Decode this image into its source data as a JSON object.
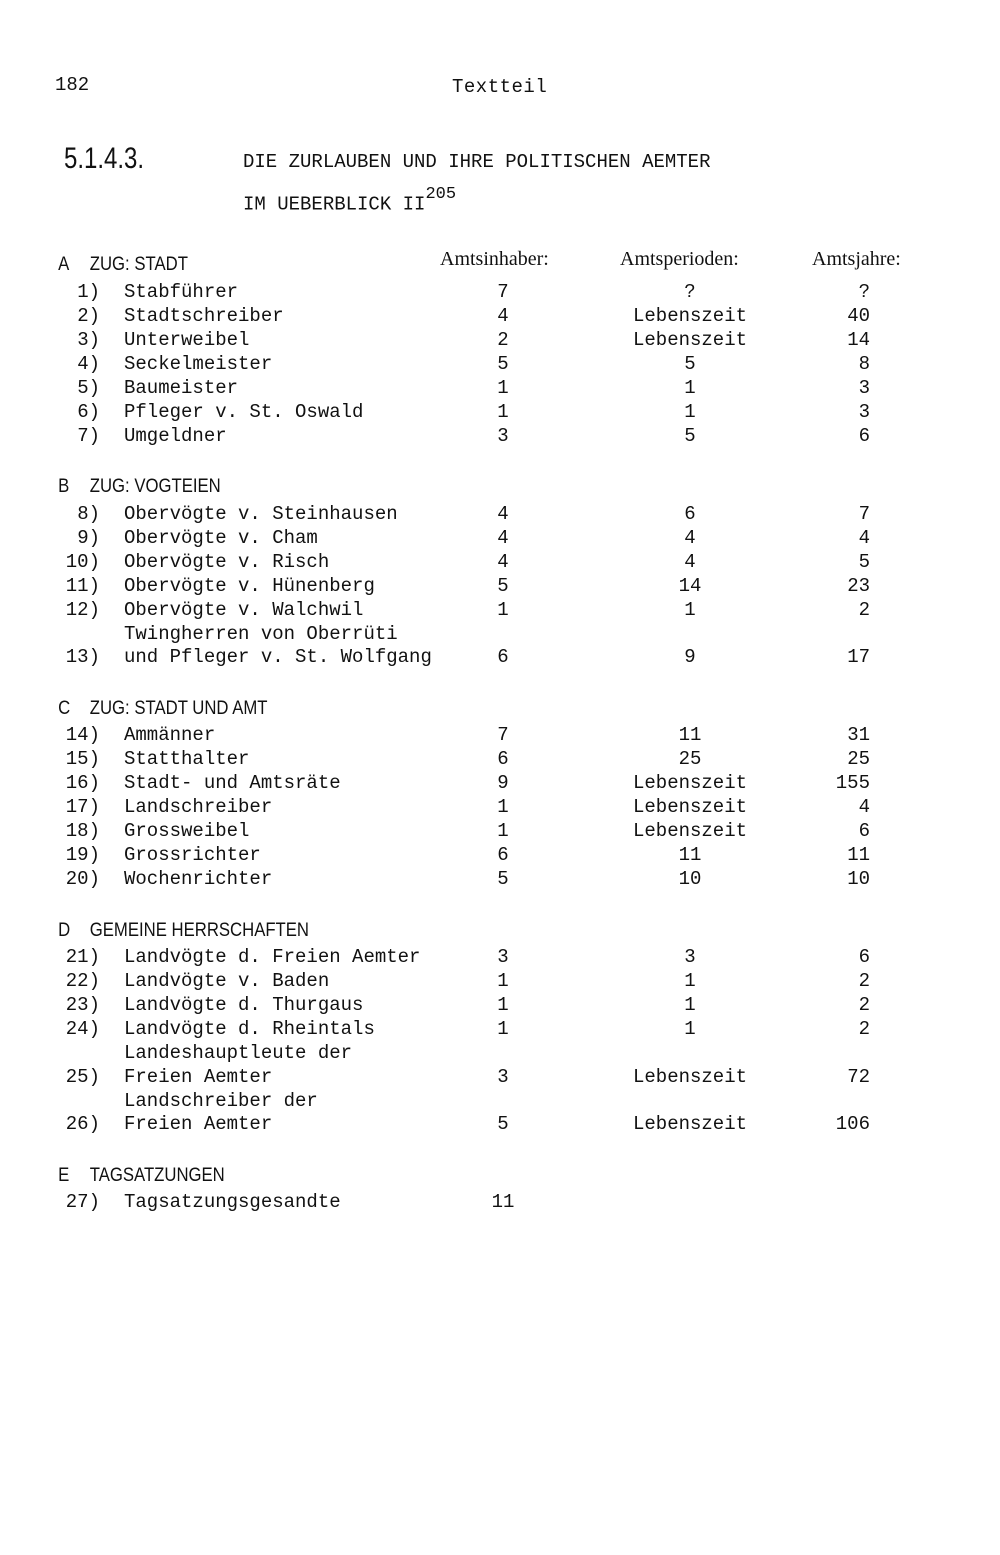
{
  "page_number": "182",
  "running_head": "Textteil",
  "section_number": "5.1.4.3.",
  "title_line1": "DIE ZURLAUBEN UND IHRE POLITISCHEN AEMTER",
  "title_line2": "IM UEBERBLICK II",
  "footnote_ref": "205",
  "column_headers": [
    "Amtsinhaber:",
    "Amtsperioden:",
    "Amtsjahre:"
  ],
  "sections": [
    {
      "letter": "A",
      "heading": "ZUG: STADT",
      "rows": [
        {
          "num": "1)",
          "name": [
            "Stabführer"
          ],
          "inhaber": "7",
          "perioden": "?",
          "jahre": "?"
        },
        {
          "num": "2)",
          "name": [
            "Stadtschreiber"
          ],
          "inhaber": "4",
          "perioden": "Lebenszeit",
          "jahre": "40"
        },
        {
          "num": "3)",
          "name": [
            "Unterweibel"
          ],
          "inhaber": "2",
          "perioden": "Lebenszeit",
          "jahre": "14"
        },
        {
          "num": "4)",
          "name": [
            "Seckelmeister"
          ],
          "inhaber": "5",
          "perioden": "5",
          "jahre": "8"
        },
        {
          "num": "5)",
          "name": [
            "Baumeister"
          ],
          "inhaber": "1",
          "perioden": "1",
          "jahre": "3"
        },
        {
          "num": "6)",
          "name": [
            "Pfleger v. St. Oswald"
          ],
          "inhaber": "1",
          "perioden": "1",
          "jahre": "3"
        },
        {
          "num": "7)",
          "name": [
            "Umgeldner"
          ],
          "inhaber": "3",
          "perioden": "5",
          "jahre": "6"
        }
      ]
    },
    {
      "letter": "B",
      "heading": "ZUG: VOGTEIEN",
      "rows": [
        {
          "num": "8)",
          "name": [
            "Obervögte v. Steinhausen"
          ],
          "inhaber": "4",
          "perioden": "6",
          "jahre": "7"
        },
        {
          "num": "9)",
          "name": [
            "Obervögte v. Cham"
          ],
          "inhaber": "4",
          "perioden": "4",
          "jahre": "4"
        },
        {
          "num": "10)",
          "name": [
            "Obervögte v. Risch"
          ],
          "inhaber": "4",
          "perioden": "4",
          "jahre": "5"
        },
        {
          "num": "11)",
          "name": [
            "Obervögte v. Hünenberg"
          ],
          "inhaber": "5",
          "perioden": "14",
          "jahre": "23"
        },
        {
          "num": "12)",
          "name": [
            "Obervögte v. Walchwil"
          ],
          "inhaber": "1",
          "perioden": "1",
          "jahre": "2"
        },
        {
          "num": "13)",
          "name": [
            "Twingherren von Oberrüti",
            "und Pfleger v. St. Wolfgang"
          ],
          "inhaber": "6",
          "perioden": "9",
          "jahre": "17"
        }
      ]
    },
    {
      "letter": "C",
      "heading": "ZUG: STADT UND AMT",
      "rows": [
        {
          "num": "14)",
          "name": [
            "Ammänner"
          ],
          "inhaber": "7",
          "perioden": "11",
          "jahre": "31"
        },
        {
          "num": "15)",
          "name": [
            "Statthalter"
          ],
          "inhaber": "6",
          "perioden": "25",
          "jahre": "25"
        },
        {
          "num": "16)",
          "name": [
            "Stadt- und Amtsräte"
          ],
          "inhaber": "9",
          "perioden": "Lebenszeit",
          "jahre": "155"
        },
        {
          "num": "17)",
          "name": [
            "Landschreiber"
          ],
          "inhaber": "1",
          "perioden": "Lebenszeit",
          "jahre": "4"
        },
        {
          "num": "18)",
          "name": [
            "Grossweibel"
          ],
          "inhaber": "1",
          "perioden": "Lebenszeit",
          "jahre": "6"
        },
        {
          "num": "19)",
          "name": [
            "Grossrichter"
          ],
          "inhaber": "6",
          "perioden": "11",
          "jahre": "11"
        },
        {
          "num": "20)",
          "name": [
            "Wochenrichter"
          ],
          "inhaber": "5",
          "perioden": "10",
          "jahre": "10"
        }
      ]
    },
    {
      "letter": "D",
      "heading": "GEMEINE HERRSCHAFTEN",
      "rows": [
        {
          "num": "21)",
          "name": [
            "Landvögte d. Freien Aemter"
          ],
          "inhaber": "3",
          "perioden": "3",
          "jahre": "6"
        },
        {
          "num": "22)",
          "name": [
            "Landvögte v. Baden"
          ],
          "inhaber": "1",
          "perioden": "1",
          "jahre": "2"
        },
        {
          "num": "23)",
          "name": [
            "Landvögte d. Thurgaus"
          ],
          "inhaber": "1",
          "perioden": "1",
          "jahre": "2"
        },
        {
          "num": "24)",
          "name": [
            "Landvögte d. Rheintals"
          ],
          "inhaber": "1",
          "perioden": "1",
          "jahre": "2"
        },
        {
          "num": "25)",
          "name": [
            "Landeshauptleute der",
            "Freien Aemter"
          ],
          "inhaber": "3",
          "perioden": "Lebenszeit",
          "jahre": "72"
        },
        {
          "num": "26)",
          "name": [
            "Landschreiber der",
            "Freien Aemter"
          ],
          "inhaber": "5",
          "perioden": "Lebenszeit",
          "jahre": "106"
        }
      ]
    },
    {
      "letter": "E",
      "heading": "TAGSATZUNGEN",
      "rows": [
        {
          "num": "27)",
          "name": [
            "Tagsatzungsgesandte"
          ],
          "inhaber": "11",
          "perioden": "",
          "jahre": ""
        }
      ]
    }
  ]
}
